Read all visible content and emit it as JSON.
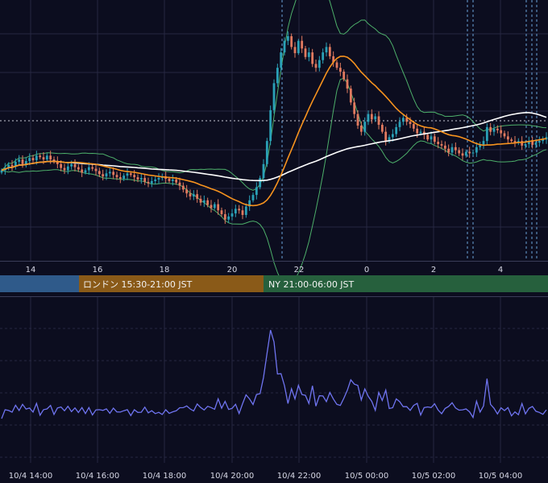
{
  "chart_data": [
    {
      "type": "line",
      "panel": "price",
      "grid": true,
      "x_ticks": [
        "14",
        "16",
        "18",
        "20",
        "22",
        "0",
        "2",
        "4"
      ],
      "sessions": [
        {
          "label": "",
          "color": "#2f5a8a"
        },
        {
          "label": "ロンドン 15:30-21:00 JST",
          "color": "#8a5a18"
        },
        {
          "label": "NY 21:00-06:00 JST",
          "color": "#26603d"
        }
      ],
      "colors": {
        "up": "#2aa1b7",
        "down": "#e07a5f",
        "ma_fast": "#f7931e",
        "ma_slow": "#ffffff",
        "bollinger": "#4daf6a",
        "grid": "#262842",
        "session_marker": "#6aa2d8"
      },
      "series": [
        {
          "type": "candlestick",
          "close": [
            0.22,
            0.25,
            0.29,
            0.27,
            0.33,
            0.36,
            0.3,
            0.34,
            0.38,
            0.35,
            0.41,
            0.39,
            0.36,
            0.41,
            0.36,
            0.34,
            0.3,
            0.25,
            0.22,
            0.27,
            0.3,
            0.26,
            0.23,
            0.19,
            0.22,
            0.26,
            0.24,
            0.21,
            0.17,
            0.14,
            0.18,
            0.2,
            0.16,
            0.13,
            0.11,
            0.15,
            0.18,
            0.16,
            0.13,
            0.1,
            0.12,
            0.07,
            0.05,
            0.08,
            0.1,
            0.12,
            0.14,
            0.11,
            0.08,
            0.1,
            0.06,
            0.02,
            -0.03,
            -0.08,
            -0.12,
            -0.09,
            -0.15,
            -0.2,
            -0.17,
            -0.23,
            -0.27,
            -0.22,
            -0.3,
            -0.35,
            -0.42,
            -0.38,
            -0.34,
            -0.28,
            -0.3,
            -0.36,
            -0.25,
            -0.17,
            -0.1,
            0.0,
            0.12,
            0.3,
            0.6,
            1.0,
            1.35,
            1.55,
            1.75,
            1.9,
            1.96,
            1.82,
            1.74,
            1.9,
            1.8,
            1.69,
            1.75,
            1.6,
            1.55,
            1.65,
            1.75,
            1.82,
            1.7,
            1.62,
            1.55,
            1.5,
            1.4,
            1.28,
            1.1,
            0.95,
            0.8,
            0.72,
            0.85,
            0.95,
            0.88,
            0.92,
            0.81,
            0.72,
            0.6,
            0.65,
            0.69,
            0.78,
            0.85,
            0.9,
            0.85,
            0.82,
            0.76,
            0.7,
            0.72,
            0.68,
            0.62,
            0.66,
            0.59,
            0.56,
            0.54,
            0.5,
            0.45,
            0.52,
            0.48,
            0.44,
            0.41,
            0.46,
            0.44,
            0.45,
            0.52,
            0.55,
            0.6,
            0.78,
            0.72,
            0.76,
            0.74,
            0.7,
            0.66,
            0.62,
            0.6,
            0.58,
            0.6,
            0.54,
            0.56,
            0.6,
            0.55,
            0.58,
            0.6,
            0.62,
            0.65
          ]
        },
        {
          "type": "moving_average",
          "name": "",
          "color": "#f7931e"
        },
        {
          "type": "moving_average",
          "name": "",
          "color": "#ffffff"
        },
        {
          "type": "bollinger_bands",
          "name": "",
          "color": "#4daf6a"
        }
      ]
    },
    {
      "type": "line",
      "panel": "oscillator",
      "grid": true,
      "x_ticks": [
        "10/4 14:00",
        "10/4 16:00",
        "10/4 18:00",
        "10/4 20:00",
        "10/4 22:00",
        "10/5 00:00",
        "10/5 02:00",
        "10/5 04:00"
      ],
      "colors": {
        "line": "#6f74f0",
        "grid": "#262842"
      },
      "series": [
        {
          "name": ""
        }
      ]
    }
  ]
}
